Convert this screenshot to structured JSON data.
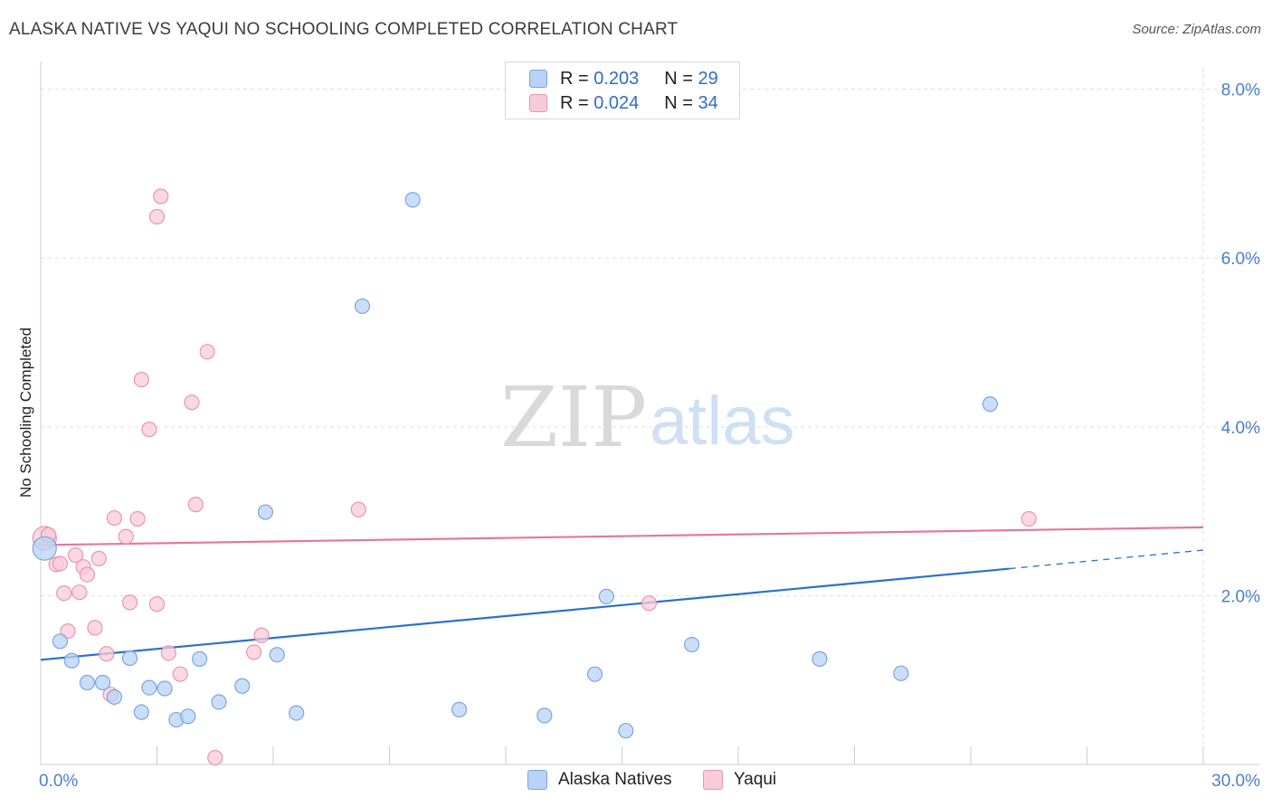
{
  "title": "ALASKA NATIVE VS YAQUI NO SCHOOLING COMPLETED CORRELATION CHART",
  "source": "Source: ZipAtlas.com",
  "watermark": {
    "zip": "ZIP",
    "atlas": "atlas"
  },
  "legend": {
    "r_label": "R =",
    "n_label": "N =",
    "series": [
      {
        "name": "Alaska Natives",
        "r": "0.203",
        "n": "29",
        "fill": "#b8d3f5",
        "stroke": "#7aa6e0"
      },
      {
        "name": "Yaqui",
        "r": "0.024",
        "n": "34",
        "fill": "#f9cbd8",
        "stroke": "#e995b0"
      }
    ]
  },
  "chart_data": {
    "type": "scatter",
    "title": "ALASKA NATIVE VS YAQUI NO SCHOOLING COMPLETED CORRELATION CHART",
    "xlabel": "",
    "ylabel": "No Schooling Completed",
    "xlim": [
      0,
      30
    ],
    "ylim": [
      0,
      8.2
    ],
    "x_tick_labels": [
      "0.0%",
      "30.0%"
    ],
    "y_ticks": [
      2,
      4,
      6,
      8
    ],
    "y_tick_labels": [
      "2.0%",
      "4.0%",
      "6.0%",
      "8.0%"
    ],
    "series": [
      {
        "name": "Alaska Natives",
        "color": "#7aa6e0",
        "fill": "#b8d3f5",
        "trend_color": "#2c6fcf",
        "trend": {
          "x0": 0,
          "y0": 1.24,
          "x1": 25,
          "y1": 2.32,
          "dash_to_x": 30,
          "dash_to_y": 2.54
        },
        "points": [
          [
            0.1,
            2.56
          ],
          [
            0.5,
            1.46
          ],
          [
            0.8,
            1.23
          ],
          [
            1.2,
            0.97
          ],
          [
            1.6,
            0.97
          ],
          [
            1.9,
            0.8
          ],
          [
            2.3,
            1.26
          ],
          [
            2.6,
            0.62
          ],
          [
            2.8,
            0.91
          ],
          [
            3.2,
            0.9
          ],
          [
            3.5,
            0.53
          ],
          [
            3.8,
            0.57
          ],
          [
            4.1,
            1.25
          ],
          [
            4.6,
            0.74
          ],
          [
            5.2,
            0.93
          ],
          [
            5.8,
            2.99
          ],
          [
            6.1,
            1.3
          ],
          [
            6.6,
            0.61
          ],
          [
            8.3,
            5.43
          ],
          [
            9.6,
            6.69
          ],
          [
            10.8,
            0.65
          ],
          [
            13.0,
            0.58
          ],
          [
            14.3,
            1.07
          ],
          [
            14.6,
            1.99
          ],
          [
            15.1,
            0.4
          ],
          [
            16.8,
            1.42
          ],
          [
            20.1,
            1.25
          ],
          [
            22.2,
            1.08
          ],
          [
            24.5,
            4.27
          ]
        ]
      },
      {
        "name": "Yaqui",
        "color": "#e995b0",
        "fill": "#f9cbd8",
        "trend_color": "#e8769c",
        "trend": {
          "x0": 0,
          "y0": 2.6,
          "x1": 30,
          "y1": 2.81
        },
        "points": [
          [
            0.1,
            2.68
          ],
          [
            0.2,
            2.72
          ],
          [
            0.4,
            2.37
          ],
          [
            0.5,
            2.38
          ],
          [
            0.6,
            2.03
          ],
          [
            0.7,
            1.58
          ],
          [
            0.9,
            2.48
          ],
          [
            1.0,
            2.04
          ],
          [
            1.1,
            2.34
          ],
          [
            1.2,
            2.25
          ],
          [
            1.4,
            1.62
          ],
          [
            1.5,
            2.44
          ],
          [
            1.7,
            1.31
          ],
          [
            1.8,
            0.83
          ],
          [
            1.9,
            2.92
          ],
          [
            2.2,
            2.7
          ],
          [
            2.3,
            1.92
          ],
          [
            2.5,
            2.91
          ],
          [
            2.6,
            4.56
          ],
          [
            2.8,
            3.97
          ],
          [
            3.0,
            6.49
          ],
          [
            3.0,
            1.9
          ],
          [
            3.1,
            6.73
          ],
          [
            3.3,
            1.32
          ],
          [
            3.6,
            1.07
          ],
          [
            3.9,
            4.29
          ],
          [
            4.0,
            3.08
          ],
          [
            4.3,
            4.89
          ],
          [
            4.5,
            0.08
          ],
          [
            5.5,
            1.33
          ],
          [
            5.7,
            1.53
          ],
          [
            8.2,
            3.02
          ],
          [
            15.7,
            1.91
          ],
          [
            25.5,
            2.91
          ]
        ]
      }
    ]
  }
}
